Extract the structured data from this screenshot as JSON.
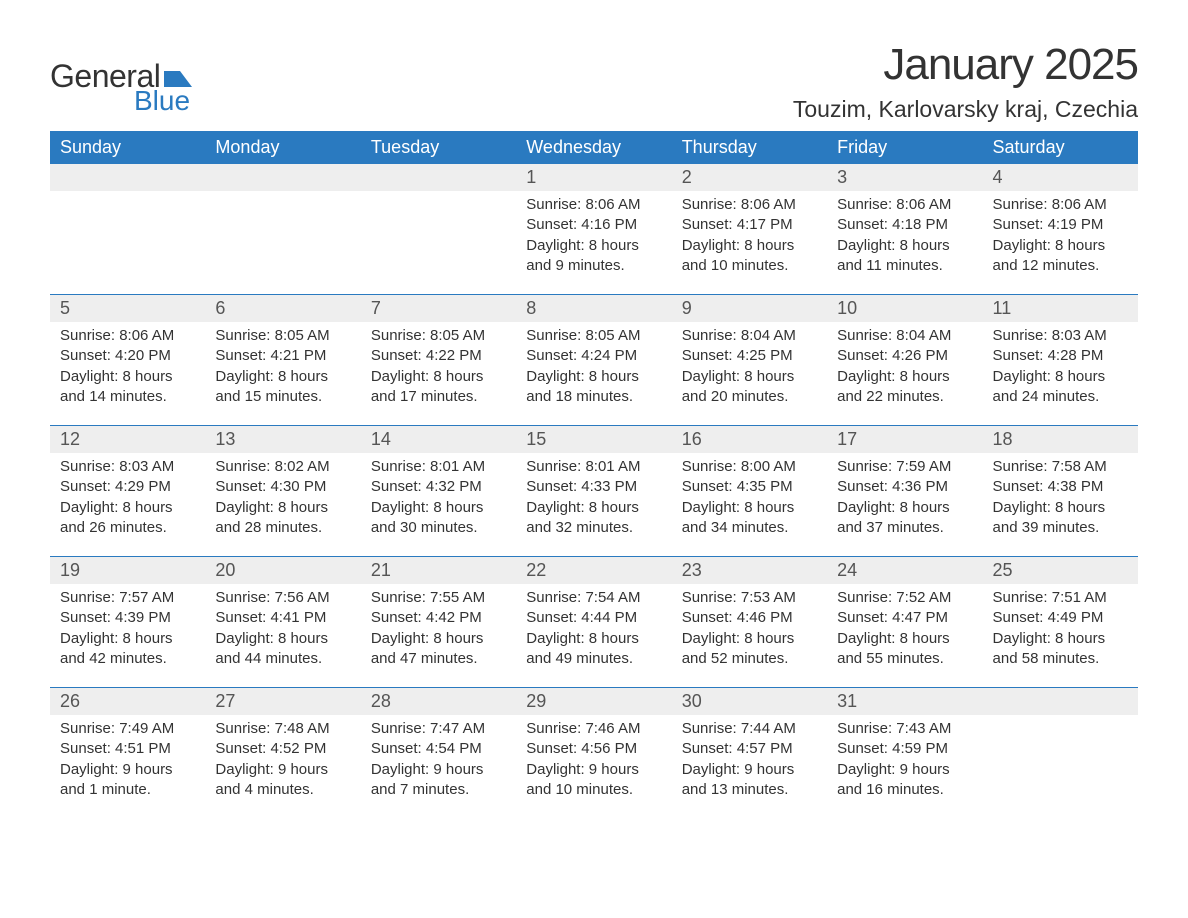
{
  "brand": {
    "general": "General",
    "blue": "Blue",
    "general_color": "#333333",
    "blue_color": "#2a7ac0",
    "flag_color": "#2a7ac0"
  },
  "title": "January 2025",
  "location": "Touzim, Karlovarsky kraj, Czechia",
  "colors": {
    "header_bg": "#2a7ac0",
    "header_text": "#ffffff",
    "daynum_bg": "#eeeeee",
    "border": "#2a7ac0",
    "text": "#333333",
    "background": "#ffffff"
  },
  "fonts": {
    "title_size": 44,
    "location_size": 23,
    "header_size": 18,
    "daynum_size": 18,
    "body_size": 15
  },
  "day_headers": [
    "Sunday",
    "Monday",
    "Tuesday",
    "Wednesday",
    "Thursday",
    "Friday",
    "Saturday"
  ],
  "weeks": [
    [
      null,
      null,
      null,
      {
        "n": "1",
        "sunrise": "Sunrise: 8:06 AM",
        "sunset": "Sunset: 4:16 PM",
        "daylight": "Daylight: 8 hours and 9 minutes."
      },
      {
        "n": "2",
        "sunrise": "Sunrise: 8:06 AM",
        "sunset": "Sunset: 4:17 PM",
        "daylight": "Daylight: 8 hours and 10 minutes."
      },
      {
        "n": "3",
        "sunrise": "Sunrise: 8:06 AM",
        "sunset": "Sunset: 4:18 PM",
        "daylight": "Daylight: 8 hours and 11 minutes."
      },
      {
        "n": "4",
        "sunrise": "Sunrise: 8:06 AM",
        "sunset": "Sunset: 4:19 PM",
        "daylight": "Daylight: 8 hours and 12 minutes."
      }
    ],
    [
      {
        "n": "5",
        "sunrise": "Sunrise: 8:06 AM",
        "sunset": "Sunset: 4:20 PM",
        "daylight": "Daylight: 8 hours and 14 minutes."
      },
      {
        "n": "6",
        "sunrise": "Sunrise: 8:05 AM",
        "sunset": "Sunset: 4:21 PM",
        "daylight": "Daylight: 8 hours and 15 minutes."
      },
      {
        "n": "7",
        "sunrise": "Sunrise: 8:05 AM",
        "sunset": "Sunset: 4:22 PM",
        "daylight": "Daylight: 8 hours and 17 minutes."
      },
      {
        "n": "8",
        "sunrise": "Sunrise: 8:05 AM",
        "sunset": "Sunset: 4:24 PM",
        "daylight": "Daylight: 8 hours and 18 minutes."
      },
      {
        "n": "9",
        "sunrise": "Sunrise: 8:04 AM",
        "sunset": "Sunset: 4:25 PM",
        "daylight": "Daylight: 8 hours and 20 minutes."
      },
      {
        "n": "10",
        "sunrise": "Sunrise: 8:04 AM",
        "sunset": "Sunset: 4:26 PM",
        "daylight": "Daylight: 8 hours and 22 minutes."
      },
      {
        "n": "11",
        "sunrise": "Sunrise: 8:03 AM",
        "sunset": "Sunset: 4:28 PM",
        "daylight": "Daylight: 8 hours and 24 minutes."
      }
    ],
    [
      {
        "n": "12",
        "sunrise": "Sunrise: 8:03 AM",
        "sunset": "Sunset: 4:29 PM",
        "daylight": "Daylight: 8 hours and 26 minutes."
      },
      {
        "n": "13",
        "sunrise": "Sunrise: 8:02 AM",
        "sunset": "Sunset: 4:30 PM",
        "daylight": "Daylight: 8 hours and 28 minutes."
      },
      {
        "n": "14",
        "sunrise": "Sunrise: 8:01 AM",
        "sunset": "Sunset: 4:32 PM",
        "daylight": "Daylight: 8 hours and 30 minutes."
      },
      {
        "n": "15",
        "sunrise": "Sunrise: 8:01 AM",
        "sunset": "Sunset: 4:33 PM",
        "daylight": "Daylight: 8 hours and 32 minutes."
      },
      {
        "n": "16",
        "sunrise": "Sunrise: 8:00 AM",
        "sunset": "Sunset: 4:35 PM",
        "daylight": "Daylight: 8 hours and 34 minutes."
      },
      {
        "n": "17",
        "sunrise": "Sunrise: 7:59 AM",
        "sunset": "Sunset: 4:36 PM",
        "daylight": "Daylight: 8 hours and 37 minutes."
      },
      {
        "n": "18",
        "sunrise": "Sunrise: 7:58 AM",
        "sunset": "Sunset: 4:38 PM",
        "daylight": "Daylight: 8 hours and 39 minutes."
      }
    ],
    [
      {
        "n": "19",
        "sunrise": "Sunrise: 7:57 AM",
        "sunset": "Sunset: 4:39 PM",
        "daylight": "Daylight: 8 hours and 42 minutes."
      },
      {
        "n": "20",
        "sunrise": "Sunrise: 7:56 AM",
        "sunset": "Sunset: 4:41 PM",
        "daylight": "Daylight: 8 hours and 44 minutes."
      },
      {
        "n": "21",
        "sunrise": "Sunrise: 7:55 AM",
        "sunset": "Sunset: 4:42 PM",
        "daylight": "Daylight: 8 hours and 47 minutes."
      },
      {
        "n": "22",
        "sunrise": "Sunrise: 7:54 AM",
        "sunset": "Sunset: 4:44 PM",
        "daylight": "Daylight: 8 hours and 49 minutes."
      },
      {
        "n": "23",
        "sunrise": "Sunrise: 7:53 AM",
        "sunset": "Sunset: 4:46 PM",
        "daylight": "Daylight: 8 hours and 52 minutes."
      },
      {
        "n": "24",
        "sunrise": "Sunrise: 7:52 AM",
        "sunset": "Sunset: 4:47 PM",
        "daylight": "Daylight: 8 hours and 55 minutes."
      },
      {
        "n": "25",
        "sunrise": "Sunrise: 7:51 AM",
        "sunset": "Sunset: 4:49 PM",
        "daylight": "Daylight: 8 hours and 58 minutes."
      }
    ],
    [
      {
        "n": "26",
        "sunrise": "Sunrise: 7:49 AM",
        "sunset": "Sunset: 4:51 PM",
        "daylight": "Daylight: 9 hours and 1 minute."
      },
      {
        "n": "27",
        "sunrise": "Sunrise: 7:48 AM",
        "sunset": "Sunset: 4:52 PM",
        "daylight": "Daylight: 9 hours and 4 minutes."
      },
      {
        "n": "28",
        "sunrise": "Sunrise: 7:47 AM",
        "sunset": "Sunset: 4:54 PM",
        "daylight": "Daylight: 9 hours and 7 minutes."
      },
      {
        "n": "29",
        "sunrise": "Sunrise: 7:46 AM",
        "sunset": "Sunset: 4:56 PM",
        "daylight": "Daylight: 9 hours and 10 minutes."
      },
      {
        "n": "30",
        "sunrise": "Sunrise: 7:44 AM",
        "sunset": "Sunset: 4:57 PM",
        "daylight": "Daylight: 9 hours and 13 minutes."
      },
      {
        "n": "31",
        "sunrise": "Sunrise: 7:43 AM",
        "sunset": "Sunset: 4:59 PM",
        "daylight": "Daylight: 9 hours and 16 minutes."
      },
      null
    ]
  ]
}
